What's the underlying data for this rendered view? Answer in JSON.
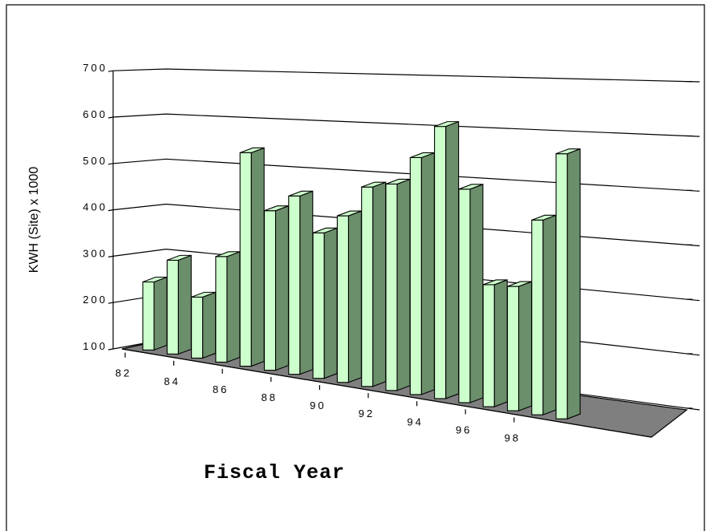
{
  "chart_data": {
    "type": "bar",
    "title": "",
    "xlabel": "Fiscal Year",
    "ylabel": "KWH (Site) x 1000",
    "ylim": [
      100,
      700
    ],
    "yticks": [
      100,
      200,
      300,
      400,
      500,
      600,
      700
    ],
    "xtick_labels": [
      "82",
      "84",
      "86",
      "88",
      "90",
      "92",
      "94",
      "96",
      "98"
    ],
    "categories": [
      "82",
      "83",
      "84",
      "85",
      "86",
      "87",
      "88",
      "89",
      "90",
      "91",
      "92",
      "93",
      "94",
      "95",
      "96",
      "97",
      "98",
      "99"
    ],
    "values": [
      245,
      300,
      230,
      325,
      555,
      440,
      480,
      410,
      455,
      525,
      540,
      605,
      680,
      555,
      360,
      365,
      515,
      665
    ],
    "grid": true,
    "legend": "none",
    "colors": {
      "bar_light": "#ccffcc",
      "bar_dark": "#6b8f6b",
      "floor": "#7f7f7f"
    }
  }
}
